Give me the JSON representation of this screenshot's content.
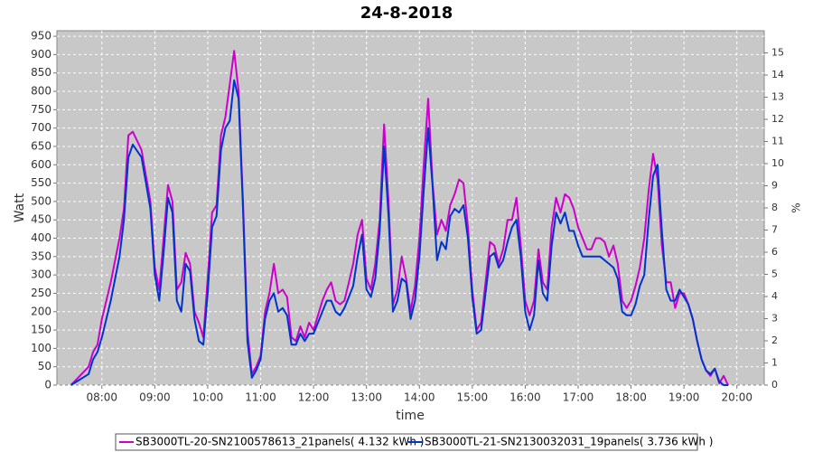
{
  "chart_data": {
    "type": "line",
    "title": "24-8-2018",
    "xlabel": "time",
    "ylabel": "Watt",
    "y2label": "%",
    "x": [
      "07:25",
      "07:35",
      "07:45",
      "07:50",
      "07:55",
      "08:00",
      "08:10",
      "08:20",
      "08:25",
      "08:30",
      "08:35",
      "08:45",
      "08:55",
      "09:00",
      "09:05",
      "09:10",
      "09:15",
      "09:20",
      "09:25",
      "09:30",
      "09:35",
      "09:40",
      "09:45",
      "09:50",
      "09:55",
      "10:00",
      "10:05",
      "10:10",
      "10:15",
      "10:20",
      "10:25",
      "10:30",
      "10:35",
      "10:40",
      "10:45",
      "10:50",
      "10:55",
      "11:00",
      "11:05",
      "11:10",
      "11:15",
      "11:20",
      "11:25",
      "11:30",
      "11:35",
      "11:40",
      "11:45",
      "11:50",
      "11:55",
      "12:00",
      "12:05",
      "12:10",
      "12:15",
      "12:20",
      "12:25",
      "12:30",
      "12:35",
      "12:40",
      "12:45",
      "12:50",
      "12:55",
      "13:00",
      "13:05",
      "13:10",
      "13:15",
      "13:20",
      "13:25",
      "13:30",
      "13:35",
      "13:40",
      "13:45",
      "13:50",
      "13:55",
      "14:00",
      "14:05",
      "14:10",
      "14:15",
      "14:20",
      "14:25",
      "14:30",
      "14:35",
      "14:40",
      "14:45",
      "14:50",
      "14:55",
      "15:00",
      "15:05",
      "15:10",
      "15:15",
      "15:20",
      "15:25",
      "15:30",
      "15:35",
      "15:40",
      "15:45",
      "15:50",
      "15:55",
      "16:00",
      "16:05",
      "16:10",
      "16:15",
      "16:20",
      "16:25",
      "16:30",
      "16:35",
      "16:40",
      "16:45",
      "16:50",
      "16:55",
      "17:00",
      "17:05",
      "17:10",
      "17:15",
      "17:20",
      "17:25",
      "17:30",
      "17:35",
      "17:40",
      "17:45",
      "17:50",
      "17:55",
      "18:00",
      "18:05",
      "18:10",
      "18:15",
      "18:20",
      "18:25",
      "18:30",
      "18:35",
      "18:40",
      "18:45",
      "18:50",
      "18:55",
      "19:00",
      "19:05",
      "19:10",
      "19:15",
      "19:20",
      "19:25",
      "19:30",
      "19:35",
      "19:40",
      "19:45",
      "19:50"
    ],
    "series": [
      {
        "name": "SB3000TL-20-SN2100578613_21panels( 4.132 kWh )",
        "color": "#cc00cc",
        "values": [
          0,
          25,
          50,
          90,
          110,
          180,
          280,
          400,
          480,
          680,
          690,
          640,
          500,
          320,
          260,
          400,
          545,
          500,
          260,
          280,
          360,
          330,
          200,
          170,
          130,
          290,
          470,
          490,
          680,
          730,
          820,
          910,
          800,
          500,
          150,
          30,
          50,
          80,
          200,
          250,
          330,
          250,
          260,
          240,
          130,
          120,
          160,
          130,
          170,
          150,
          190,
          230,
          260,
          280,
          230,
          220,
          230,
          280,
          330,
          410,
          450,
          290,
          260,
          330,
          450,
          710,
          500,
          220,
          260,
          350,
          290,
          200,
          270,
          400,
          600,
          780,
          550,
          410,
          450,
          420,
          490,
          520,
          560,
          550,
          430,
          260,
          150,
          170,
          280,
          390,
          380,
          330,
          370,
          450,
          450,
          510,
          380,
          230,
          190,
          230,
          370,
          280,
          260,
          430,
          510,
          470,
          520,
          510,
          480,
          430,
          400,
          370,
          370,
          400,
          400,
          390,
          350,
          380,
          330,
          230,
          210,
          230,
          270,
          320,
          400,
          530,
          630,
          560,
          380,
          280,
          280,
          210,
          250,
          250,
          220,
          180,
          120,
          70,
          40,
          25,
          45,
          5,
          25,
          0
        ]
      },
      {
        "name": "SB3000TL-21-SN2130032031_19panels( 3.736 kWh )",
        "color": "#0033cc",
        "values": [
          0,
          15,
          30,
          70,
          90,
          130,
          230,
          350,
          450,
          620,
          655,
          620,
          480,
          300,
          230,
          360,
          510,
          470,
          230,
          200,
          330,
          310,
          180,
          120,
          110,
          250,
          430,
          460,
          640,
          700,
          720,
          830,
          780,
          480,
          120,
          20,
          40,
          70,
          180,
          230,
          250,
          200,
          210,
          190,
          110,
          110,
          140,
          120,
          140,
          140,
          170,
          200,
          230,
          230,
          200,
          190,
          210,
          240,
          270,
          350,
          410,
          260,
          240,
          290,
          420,
          650,
          460,
          200,
          230,
          290,
          280,
          180,
          230,
          350,
          530,
          700,
          540,
          340,
          390,
          370,
          460,
          480,
          470,
          490,
          400,
          240,
          140,
          150,
          250,
          350,
          360,
          320,
          340,
          390,
          430,
          450,
          350,
          200,
          150,
          190,
          340,
          250,
          230,
          380,
          470,
          440,
          470,
          420,
          420,
          380,
          350,
          350,
          350,
          350,
          350,
          340,
          330,
          320,
          290,
          200,
          190,
          190,
          220,
          270,
          300,
          450,
          570,
          600,
          420,
          260,
          230,
          230,
          260,
          240,
          220,
          180,
          120,
          70,
          40,
          30,
          45,
          10,
          0,
          0
        ]
      }
    ],
    "xlim": [
      "07:09",
      "20:31"
    ],
    "xticks": [
      "08:00",
      "09:00",
      "10:00",
      "11:00",
      "12:00",
      "13:00",
      "14:00",
      "15:00",
      "16:00",
      "17:00",
      "18:00",
      "19:00",
      "20:00"
    ],
    "ylim": [
      0,
      965
    ],
    "yticks": [
      0,
      50,
      100,
      150,
      200,
      250,
      300,
      350,
      400,
      450,
      500,
      550,
      600,
      650,
      700,
      750,
      800,
      850,
      900,
      950
    ],
    "y2lim": [
      0,
      16
    ],
    "y2ticks": [
      0,
      1,
      2,
      3,
      4,
      5,
      6,
      7,
      8,
      9,
      10,
      11,
      12,
      13,
      14,
      15
    ],
    "grid": true
  }
}
